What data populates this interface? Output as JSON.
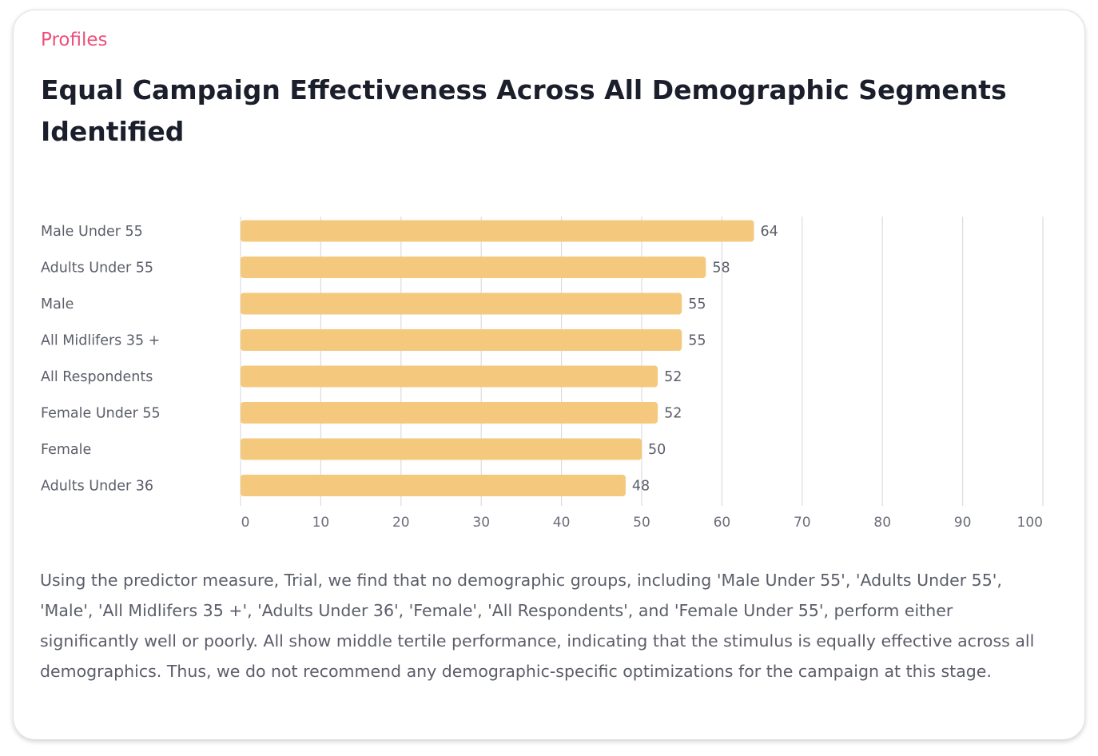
{
  "card": {
    "section_label": "Profiles",
    "title": "Equal Campaign Effectiveness Across All Demographic Segments Identified",
    "description": "Using the predictor measure, Trial, we find that no demographic groups, including 'Male Under 55', 'Adults Under 55', 'Male', 'All Midlifers 35 +', 'Adults Under 36', 'Female', 'All Respondents', and 'Female Under 55', perform either significantly well or poorly. All show middle tertile performance, indicating that the stimulus is equally effective across all demographics. Thus, we do not recommend any demographic-specific optimizations for the campaign at this stage."
  },
  "colors": {
    "accent": "#ee4f79",
    "bar": "#f4c97d",
    "grid": "#dcdcdc",
    "text": "#5b5e69",
    "title": "#1b1e2b"
  },
  "chart_data": {
    "type": "bar",
    "orientation": "horizontal",
    "categories": [
      "Male Under 55",
      "Adults Under 55",
      "Male",
      "All Midlifers 35 +",
      "All Respondents",
      "Female Under 55",
      "Female",
      "Adults Under 36"
    ],
    "values": [
      64,
      58,
      55,
      55,
      52,
      52,
      50,
      48
    ],
    "xlim": [
      0,
      100
    ],
    "xticks": [
      0,
      10,
      20,
      30,
      40,
      50,
      60,
      70,
      80,
      90,
      100
    ],
    "grid": true,
    "data_labels": true,
    "legend": "none"
  }
}
